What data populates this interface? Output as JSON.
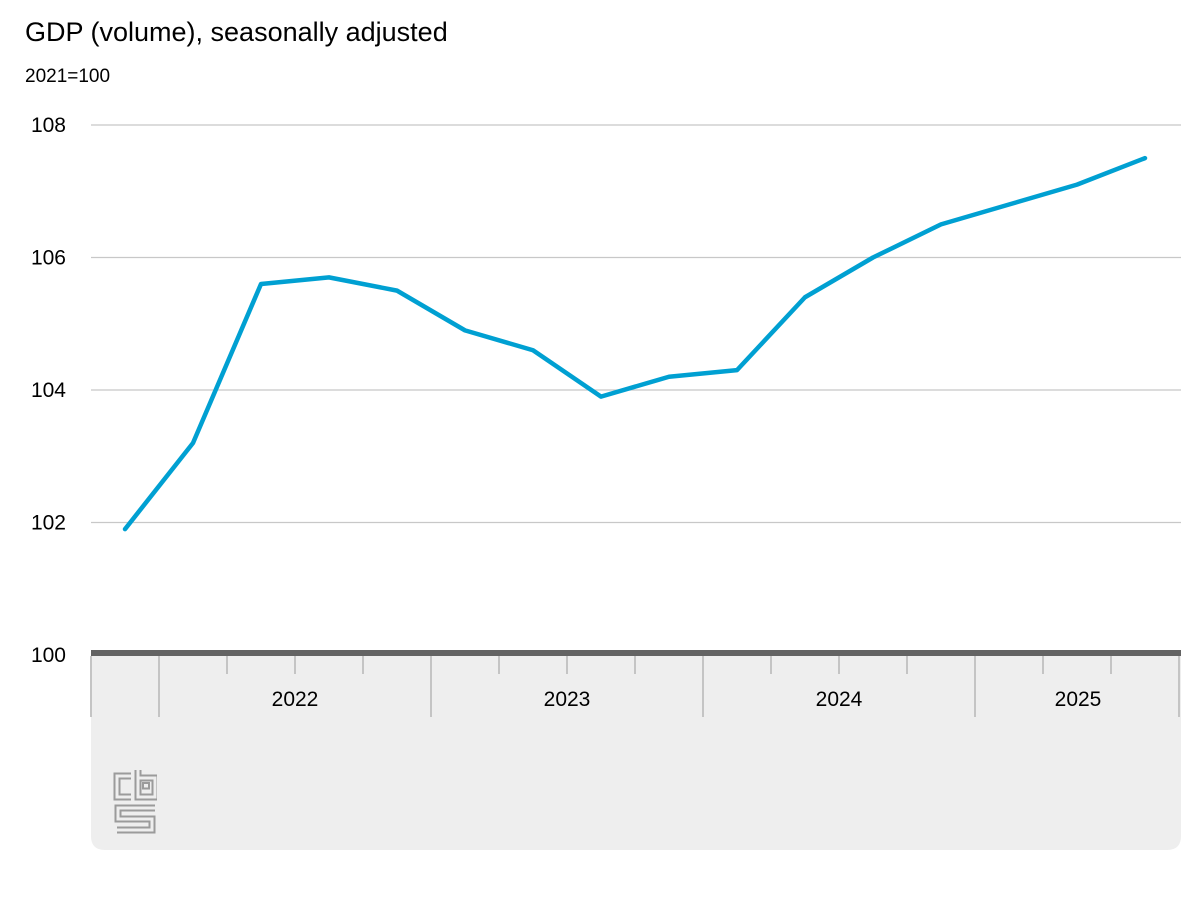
{
  "chart_data": {
    "type": "line",
    "title": "GDP (volume), seasonally adjusted",
    "unit_label": "2021=100",
    "x": [
      "2021 Q4",
      "2022 Q1",
      "2022 Q2",
      "2022 Q3",
      "2022 Q4",
      "2023 Q1",
      "2023 Q2",
      "2023 Q3",
      "2023 Q4",
      "2024 Q1",
      "2024 Q2",
      "2024 Q3",
      "2024 Q4",
      "2025 Q1",
      "2025 Q2",
      "2025 Q3"
    ],
    "series": [
      {
        "name": "GDP volume index, seasonally adjusted",
        "values": [
          101.9,
          103.2,
          105.6,
          105.7,
          105.5,
          104.9,
          104.6,
          103.9,
          104.2,
          104.3,
          105.4,
          106.0,
          106.5,
          106.8,
          107.1,
          107.5
        ]
      }
    ],
    "y_ticks": [
      100,
      102,
      104,
      106,
      108
    ],
    "ylim": [
      100,
      108.4
    ],
    "xlabel": "",
    "ylabel": "2021=100",
    "x_year_labels": [
      "2022",
      "2023",
      "2024",
      "2025"
    ],
    "grid": true,
    "legend_position": "none"
  },
  "style": {
    "line_color": "#00a0d2",
    "grid_color": "#c8c8c8",
    "axis_bar_color": "#636363",
    "band_color": "#eeeeee",
    "tick_color": "#c4c4c4",
    "text_color": "#000000",
    "logo_color": "#9b9b9b"
  },
  "footer": {
    "logo": "cbs-logo"
  }
}
